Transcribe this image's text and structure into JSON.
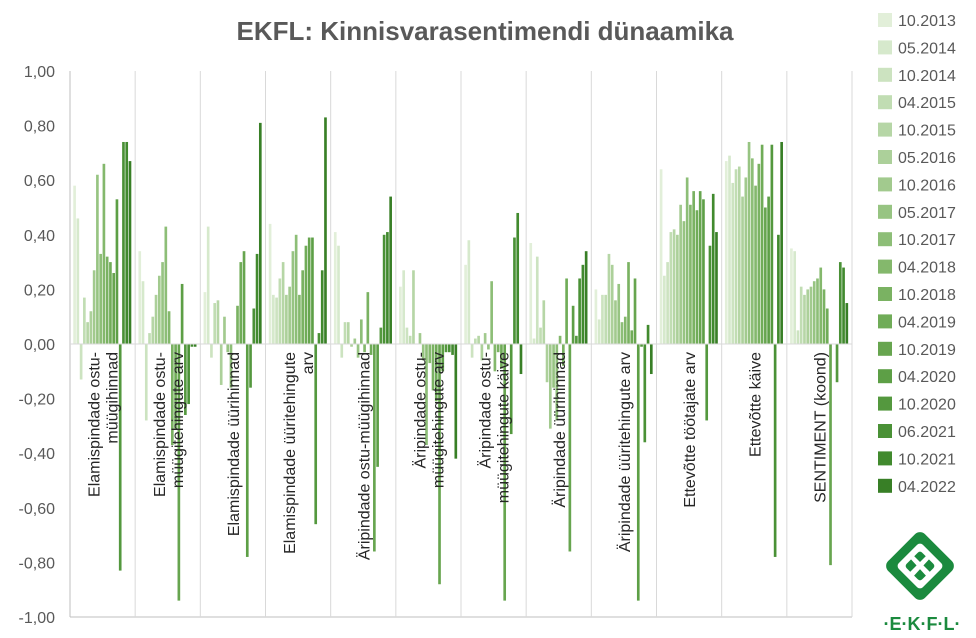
{
  "chart_data": {
    "type": "bar",
    "title": "EKFL: Kinnisvarasentimendi dünaamika",
    "ylim": [
      -1.0,
      1.0
    ],
    "yticks": [
      "1,00",
      "0,80",
      "0,60",
      "0,40",
      "0,20",
      "0,00",
      "-0,20",
      "-0,40",
      "-0,60",
      "-0,80",
      "-1,00"
    ],
    "categories": [
      {
        "lines": [
          "Elamispindade ostu-",
          "müügihinnad"
        ]
      },
      {
        "lines": [
          "Elamispindade ostu-",
          "müügitehingute arv"
        ]
      },
      {
        "lines": [
          "Elamispindade üürihinnad"
        ]
      },
      {
        "lines": [
          "Elamispindade üüritehingute",
          "arv"
        ]
      },
      {
        "lines": [
          "Äripindade ostu-müügihinnad"
        ]
      },
      {
        "lines": [
          "Äripindade ostu-",
          "müügitehingute arv"
        ]
      },
      {
        "lines": [
          "Äripindade ostu-",
          "müügitehingute käive"
        ]
      },
      {
        "lines": [
          "Äripindade üürihinnad"
        ]
      },
      {
        "lines": [
          "Äripindade üüritehingute arv"
        ]
      },
      {
        "lines": [
          "Ettevõtte töötajate arv"
        ]
      },
      {
        "lines": [
          "Ettevõtte käive"
        ]
      },
      {
        "lines": [
          "SENTIMENT (koond)"
        ]
      }
    ],
    "series": [
      {
        "name": "10.2013",
        "color": "#e2efd9",
        "values": [
          0.58,
          0.34,
          0.19,
          0.44,
          0.41,
          0.21,
          0.29,
          0.37,
          0.2,
          0.64,
          0.67,
          0.35
        ]
      },
      {
        "name": "05.2014",
        "color": "#d6e9cc",
        "values": [
          0.46,
          0.23,
          0.43,
          0.18,
          0.36,
          0.27,
          0.38,
          0.02,
          0.09,
          0.25,
          0.69,
          0.34
        ]
      },
      {
        "name": "10.2014",
        "color": "#cce3c0",
        "values": [
          -0.13,
          -0.28,
          -0.05,
          0.17,
          -0.05,
          0.06,
          -0.05,
          0.32,
          0.18,
          0.3,
          0.59,
          0.05
        ]
      },
      {
        "name": "04.2015",
        "color": "#c1ddb3",
        "values": [
          0.17,
          0.04,
          0.15,
          0.24,
          0.08,
          0.03,
          0.02,
          0.06,
          0.18,
          0.41,
          0.64,
          0.21
        ]
      },
      {
        "name": "10.2015",
        "color": "#b6d6a6",
        "values": [
          0.08,
          0.1,
          0.16,
          0.3,
          0.08,
          0.27,
          0.03,
          0.16,
          0.33,
          0.42,
          0.65,
          0.18
        ]
      },
      {
        "name": "05.2016",
        "color": "#acd09a",
        "values": [
          0.12,
          0.18,
          -0.15,
          0.18,
          -0.01,
          0.0,
          -0.06,
          -0.14,
          0.29,
          0.4,
          0.54,
          0.2
        ]
      },
      {
        "name": "10.2016",
        "color": "#a2ca8e",
        "values": [
          0.27,
          0.25,
          0.1,
          0.21,
          0.02,
          0.04,
          0.04,
          -0.31,
          0.16,
          0.51,
          0.61,
          0.21
        ]
      },
      {
        "name": "05.2017",
        "color": "#97c482",
        "values": [
          0.62,
          0.3,
          -0.03,
          0.34,
          -0.05,
          -0.06,
          -0.02,
          -0.16,
          0.22,
          0.45,
          0.74,
          0.23
        ]
      },
      {
        "name": "10.2017",
        "color": "#8dbe77",
        "values": [
          0.33,
          0.43,
          -0.16,
          0.4,
          0.09,
          -0.37,
          0.23,
          -0.28,
          0.08,
          0.61,
          0.68,
          0.24
        ]
      },
      {
        "name": "04.2018",
        "color": "#84b86c",
        "values": [
          0.66,
          0.12,
          0.0,
          0.18,
          -0.03,
          -0.07,
          -0.1,
          0.03,
          0.1,
          0.51,
          0.58,
          0.28
        ]
      },
      {
        "name": "10.2018",
        "color": "#7ab262",
        "values": [
          0.32,
          -0.37,
          0.14,
          0.27,
          0.19,
          -0.17,
          -0.03,
          -0.08,
          0.3,
          0.56,
          0.66,
          0.2
        ]
      },
      {
        "name": "04.2019",
        "color": "#70ac58",
        "values": [
          0.3,
          -0.31,
          0.3,
          0.36,
          -0.04,
          -0.21,
          -0.09,
          0.24,
          0.05,
          0.49,
          0.73,
          0.13
        ]
      },
      {
        "name": "10.2019",
        "color": "#67a54f",
        "values": [
          0.26,
          -0.94,
          0.34,
          0.39,
          -0.76,
          -0.88,
          -0.94,
          -0.76,
          0.24,
          0.56,
          0.5,
          -0.81
        ]
      },
      {
        "name": "04.2020",
        "color": "#5d9f46",
        "values": [
          0.53,
          0.22,
          -0.78,
          0.39,
          -0.45,
          -0.1,
          0.0,
          0.14,
          -0.94,
          0.53,
          0.54,
          0.0
        ]
      },
      {
        "name": "10.2020",
        "color": "#54983e",
        "values": [
          -0.83,
          -0.26,
          -0.16,
          -0.66,
          0.06,
          -0.03,
          -0.33,
          0.03,
          -0.01,
          -0.28,
          0.73,
          -0.14
        ]
      },
      {
        "name": "06.2021",
        "color": "#4a9136",
        "values": [
          0.74,
          -0.22,
          0.13,
          0.04,
          0.4,
          -0.03,
          0.39,
          0.24,
          -0.36,
          0.36,
          -0.78,
          0.3
        ]
      },
      {
        "name": "10.2021",
        "color": "#418a2e",
        "values": [
          0.74,
          -0.01,
          0.33,
          0.27,
          0.41,
          -0.04,
          0.48,
          0.29,
          0.07,
          0.55,
          0.4,
          0.28
        ]
      },
      {
        "name": "04.2022",
        "color": "#387f26",
        "values": [
          0.67,
          -0.01,
          0.81,
          0.83,
          0.54,
          -0.42,
          -0.11,
          0.34,
          -0.11,
          0.41,
          0.74,
          0.15
        ]
      }
    ],
    "legend_position": "right",
    "grid": "vertical category separators"
  },
  "logo": {
    "text": "·E·K·F·L·",
    "color": "#1b8a3e"
  }
}
